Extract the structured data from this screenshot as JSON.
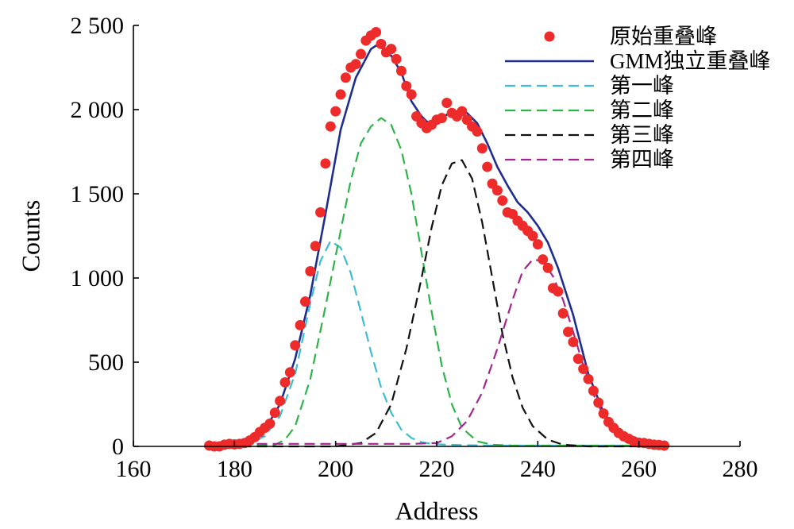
{
  "chart_data": {
    "type": "line",
    "title": "",
    "xlabel": "Address",
    "ylabel": "Counts",
    "xlim": [
      160,
      280
    ],
    "ylim": [
      0,
      2500
    ],
    "x_ticks": [
      160,
      180,
      200,
      220,
      240,
      260,
      280
    ],
    "x_tick_labels": [
      "160",
      "180",
      "200",
      "220",
      "240",
      "260",
      "280"
    ],
    "y_ticks": [
      0,
      500,
      1000,
      1500,
      2000,
      2500
    ],
    "y_tick_labels": [
      "0",
      "500",
      "1 000",
      "1 500",
      "2 000",
      "2 500"
    ],
    "grid": false,
    "legend_position": "top-right",
    "series": [
      {
        "name": "原始重叠峰",
        "style": "scatter",
        "color": "#ee2b2b",
        "x": [
          175,
          176,
          177,
          178,
          179,
          180,
          181,
          182,
          183,
          184,
          185,
          186,
          187,
          188,
          189,
          190,
          191,
          192,
          193,
          194,
          195,
          196,
          197,
          198,
          199,
          200,
          201,
          202,
          203,
          204,
          205,
          206,
          207,
          208,
          209,
          210,
          211,
          212,
          213,
          214,
          215,
          216,
          217,
          218,
          219,
          220,
          221,
          222,
          223,
          224,
          225,
          226,
          227,
          228,
          229,
          230,
          231,
          232,
          233,
          234,
          235,
          236,
          237,
          238,
          239,
          240,
          241,
          242,
          243,
          244,
          245,
          246,
          247,
          248,
          249,
          250,
          251,
          252,
          253,
          254,
          255,
          256,
          257,
          258,
          259,
          260,
          261,
          262,
          263,
          264,
          265
        ],
        "y": [
          5,
          0,
          0,
          10,
          15,
          12,
          15,
          20,
          35,
          55,
          85,
          110,
          135,
          200,
          270,
          380,
          440,
          600,
          720,
          860,
          1040,
          1190,
          1390,
          1680,
          1900,
          1990,
          2090,
          2190,
          2250,
          2270,
          2330,
          2410,
          2440,
          2460,
          2390,
          2340,
          2360,
          2300,
          2230,
          2140,
          2090,
          1960,
          1920,
          1890,
          1910,
          1940,
          1950,
          2040,
          1980,
          1960,
          1990,
          1940,
          1900,
          1870,
          1770,
          1660,
          1560,
          1520,
          1460,
          1390,
          1380,
          1340,
          1310,
          1280,
          1250,
          1200,
          1110,
          1060,
          940,
          920,
          790,
          680,
          620,
          520,
          460,
          400,
          330,
          260,
          195,
          145,
          110,
          80,
          60,
          45,
          30,
          22,
          20,
          15,
          10,
          8,
          5
        ]
      },
      {
        "name": "GMM独立重叠峰",
        "style": "solid",
        "color": "#1f2d8f",
        "x": [
          175,
          180,
          183,
          186,
          189,
          192,
          195,
          198,
          201,
          204,
          207,
          208,
          209,
          211,
          213,
          215,
          217,
          218,
          219,
          220,
          222,
          224,
          226,
          228,
          230,
          232,
          234,
          236,
          238,
          240,
          242,
          244,
          247,
          250,
          253,
          256,
          259,
          262,
          265
        ],
        "y": [
          0,
          10,
          40,
          100,
          250,
          520,
          900,
          1380,
          1880,
          2190,
          2360,
          2380,
          2370,
          2320,
          2220,
          2050,
          1960,
          1930,
          1920,
          1930,
          1970,
          1990,
          1980,
          1920,
          1800,
          1660,
          1550,
          1450,
          1390,
          1310,
          1210,
          1060,
          780,
          430,
          200,
          90,
          40,
          15,
          5
        ]
      },
      {
        "name": "第一峰",
        "style": "dashed",
        "color": "#3fbcd4",
        "x": [
          175,
          180,
          183,
          186,
          189,
          192,
          195,
          197,
          199,
          201,
          203,
          205,
          207,
          209,
          211,
          213,
          215,
          217,
          219,
          222,
          225,
          230,
          240,
          250,
          265
        ],
        "y": [
          5,
          8,
          20,
          60,
          180,
          430,
          850,
          1100,
          1220,
          1180,
          1030,
          800,
          560,
          350,
          200,
          100,
          50,
          25,
          15,
          10,
          8,
          5,
          5,
          5,
          5
        ]
      },
      {
        "name": "第二峰",
        "style": "dashed",
        "color": "#2db34a",
        "x": [
          175,
          185,
          188,
          190,
          192,
          195,
          198,
          201,
          203,
          205,
          207,
          209,
          211,
          213,
          215,
          217,
          219,
          221,
          223,
          225,
          228,
          231,
          235,
          240,
          250,
          265
        ],
        "y": [
          5,
          5,
          10,
          40,
          120,
          400,
          830,
          1280,
          1580,
          1800,
          1900,
          1950,
          1910,
          1760,
          1500,
          1150,
          800,
          480,
          250,
          110,
          30,
          10,
          5,
          5,
          5,
          5
        ]
      },
      {
        "name": "第三峰",
        "style": "dashed",
        "color": "#111111",
        "x": [
          175,
          200,
          205,
          208,
          211,
          214,
          217,
          219,
          221,
          223,
          225,
          227,
          229,
          231,
          233,
          235,
          237,
          239,
          242,
          245,
          250,
          265
        ],
        "y": [
          0,
          0,
          20,
          80,
          250,
          580,
          1000,
          1300,
          1550,
          1680,
          1700,
          1590,
          1330,
          1000,
          670,
          410,
          230,
          120,
          40,
          10,
          0,
          0
        ]
      },
      {
        "name": "第四峰",
        "style": "dashed",
        "color": "#a3268f",
        "x": [
          175,
          200,
          215,
          220,
          223,
          226,
          229,
          232,
          235,
          237,
          239,
          241,
          243,
          245,
          247,
          249,
          251,
          253,
          256,
          260,
          265
        ],
        "y": [
          15,
          15,
          15,
          20,
          60,
          150,
          320,
          580,
          870,
          1040,
          1110,
          1100,
          1010,
          870,
          680,
          480,
          310,
          180,
          70,
          20,
          5
        ]
      }
    ]
  }
}
